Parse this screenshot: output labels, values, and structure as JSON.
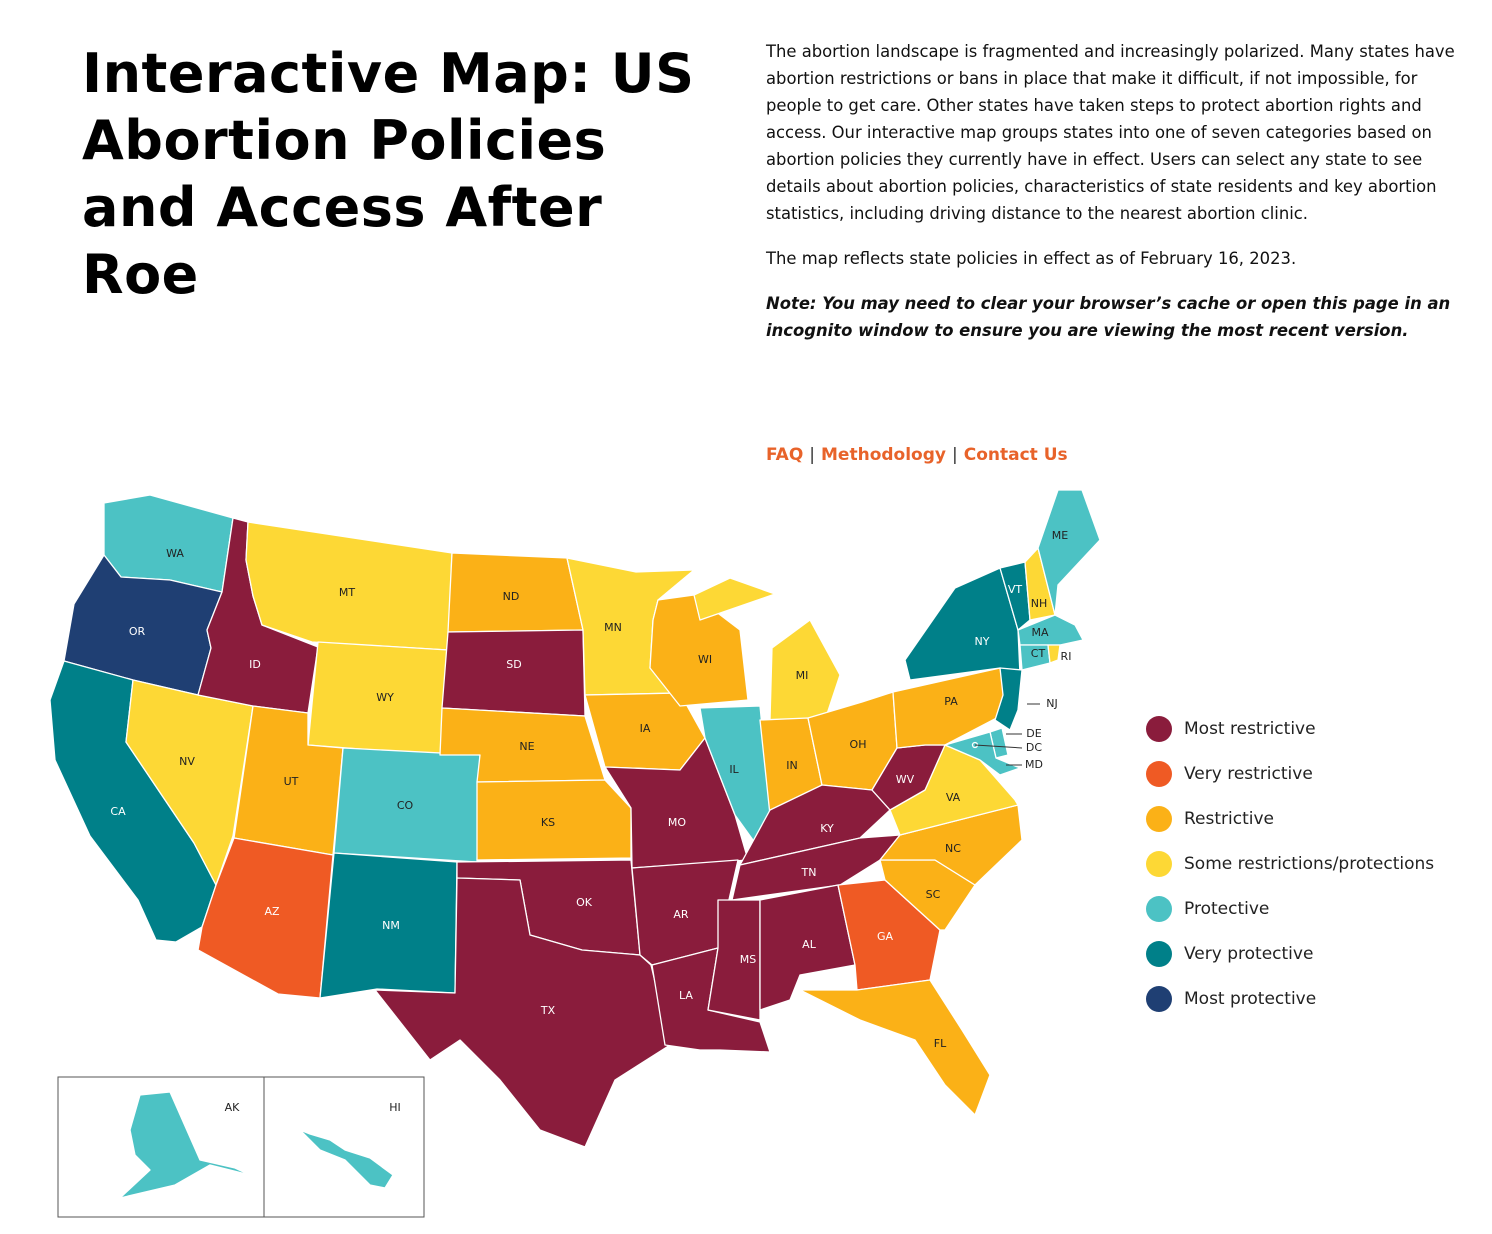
{
  "header": {
    "title": "Interactive Map: US Abortion Policies and Access After Roe"
  },
  "intro": {
    "paragraphs": [
      "The abortion landscape is fragmented and increasingly polarized. Many states have abortion restrictions or bans in place that make it difficult, if not impossible, for people to get care. Other states have taken steps to protect abortion rights and access. Our interactive map groups states into one of seven categories based on abortion policies they currently have in effect. Users can select any state to see details about abortion policies, characteristics of state residents and key abortion statistics, including driving distance to the nearest abortion clinic.",
      "The map reflects state policies in effect as of February 16, 2023."
    ],
    "note": "Note: You may need to clear your browser’s cache or open this page in an incognito window to ensure you are viewing the most recent version."
  },
  "links": {
    "faq": "FAQ",
    "methodology": "Methodology",
    "contact": "Contact Us",
    "separator": "|"
  },
  "legend": {
    "items": [
      {
        "key": "most_restrictive",
        "label": "Most restrictive",
        "color": "#8a1c3c"
      },
      {
        "key": "very_restrictive",
        "label": "Very restrictive",
        "color": "#ef5a24"
      },
      {
        "key": "restrictive",
        "label": "Restrictive",
        "color": "#fbb117"
      },
      {
        "key": "some",
        "label": "Some restrictions/protections",
        "color": "#fdd835"
      },
      {
        "key": "protective",
        "label": "Protective",
        "color": "#4cc2c4"
      },
      {
        "key": "very_protective",
        "label": "Very protective",
        "color": "#008089"
      },
      {
        "key": "most_protective",
        "label": "Most protective",
        "color": "#1f3f73"
      }
    ]
  },
  "map": {
    "states": {
      "WA": "protective",
      "OR": "most_protective",
      "CA": "very_protective",
      "NV": "some",
      "ID": "most_restrictive",
      "MT": "some",
      "WY": "some",
      "UT": "restrictive",
      "AZ": "very_restrictive",
      "CO": "protective",
      "NM": "very_protective",
      "ND": "restrictive",
      "SD": "most_restrictive",
      "NE": "restrictive",
      "KS": "restrictive",
      "OK": "most_restrictive",
      "TX": "most_restrictive",
      "MN": "some",
      "IA": "restrictive",
      "MO": "most_restrictive",
      "AR": "most_restrictive",
      "LA": "most_restrictive",
      "WI": "restrictive",
      "IL": "protective",
      "MI": "some",
      "IN": "restrictive",
      "OH": "restrictive",
      "KY": "most_restrictive",
      "TN": "most_restrictive",
      "MS": "most_restrictive",
      "AL": "most_restrictive",
      "GA": "very_restrictive",
      "FL": "restrictive",
      "SC": "restrictive",
      "NC": "restrictive",
      "VA": "some",
      "WV": "most_restrictive",
      "PA": "restrictive",
      "NY": "very_protective",
      "VT": "very_protective",
      "NH": "some",
      "ME": "protective",
      "MA": "protective",
      "RI": "some",
      "CT": "protective",
      "NJ": "very_protective",
      "DE": "protective",
      "MD": "protective",
      "DC": "protective",
      "AK": "protective",
      "HI": "protective"
    }
  }
}
